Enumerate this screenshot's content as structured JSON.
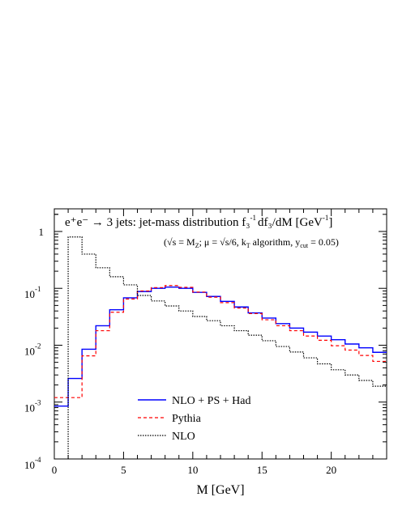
{
  "chart_data": {
    "type": "line",
    "step": true,
    "y_scale": "log",
    "xlim": [
      0,
      24
    ],
    "ylim": [
      0.0001,
      2.5
    ],
    "x_ticks": [
      0,
      5,
      10,
      15,
      20
    ],
    "y_ticks": [
      {
        "value": 1,
        "base": "1",
        "exp": ""
      },
      {
        "value": 0.1,
        "base": "10",
        "exp": "-1"
      },
      {
        "value": 0.01,
        "base": "10",
        "exp": "-2"
      },
      {
        "value": 0.001,
        "base": "10",
        "exp": "-3"
      },
      {
        "value": 0.0001,
        "base": "10",
        "exp": "-4"
      }
    ],
    "xlabel": "M [GeV]",
    "title": "e+e− → 3 jets: jet-mass distribution f3−1 df3/dM [GeV−1]",
    "subtitle": "(√s = MZ; μ = √s/6, kT algorithm, ycut = 0.05)",
    "legend_position": "bottom-left",
    "bin_edges": [
      0,
      1,
      2,
      3,
      4,
      5,
      6,
      7,
      8,
      9,
      10,
      11,
      12,
      13,
      14,
      15,
      16,
      17,
      18,
      19,
      20,
      21,
      22,
      23,
      24
    ],
    "series": [
      {
        "name": "NLO + PS + Had",
        "color": "#0000ff",
        "dash": "",
        "values": [
          0.00085,
          0.0026,
          0.0085,
          0.022,
          0.042,
          0.068,
          0.088,
          0.1,
          0.105,
          0.1,
          0.085,
          0.072,
          0.059,
          0.047,
          0.037,
          0.03,
          0.024,
          0.02,
          0.017,
          0.0145,
          0.0125,
          0.0105,
          0.009,
          0.0075
        ]
      },
      {
        "name": "Pythia",
        "color": "#ff0000",
        "dash": "4,3",
        "values": [
          0.0012,
          0.0012,
          0.0065,
          0.018,
          0.038,
          0.065,
          0.09,
          0.103,
          0.112,
          0.104,
          0.086,
          0.07,
          0.056,
          0.045,
          0.036,
          0.028,
          0.022,
          0.018,
          0.0145,
          0.0122,
          0.0098,
          0.0082,
          0.0066,
          0.0052
        ]
      },
      {
        "name": "NLO",
        "color": "#000000",
        "dash": "1.5,1.5",
        "values": [
          null,
          0.8,
          0.4,
          0.23,
          0.16,
          0.115,
          0.075,
          0.06,
          0.049,
          0.04,
          0.032,
          0.027,
          0.022,
          0.018,
          0.015,
          0.012,
          0.0095,
          0.0076,
          0.006,
          0.0047,
          0.0037,
          0.003,
          0.0024,
          0.0019
        ]
      }
    ]
  },
  "title_parts": {
    "main": "e⁺e⁻ → 3 jets: jet-mass distribution f₃",
    "exp": "-1",
    "mid": "df₃/dM [GeV",
    "end": "]"
  },
  "subtitle_parts": {
    "a": "(√s = M",
    "b": "Z",
    "c": "; μ = √s/6, k",
    "d": "T",
    "e": " algorithm, y",
    "f": "cut",
    "g": " = 0.05)"
  }
}
